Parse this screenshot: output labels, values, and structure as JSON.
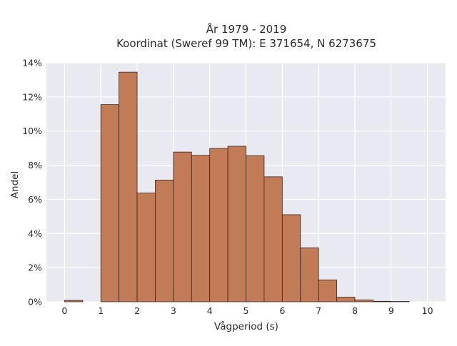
{
  "chart_data": {
    "type": "bar",
    "title_lines": [
      "År 1979 - 2019",
      "Koordinat (Sweref 99 TM): E 371654, N 6273675"
    ],
    "xlabel": "Vågperiod (s)",
    "ylabel": "Andel",
    "xlim": [
      -0.5,
      10.5
    ],
    "ylim": [
      0,
      0.14
    ],
    "x_ticks": [
      0,
      1,
      2,
      3,
      4,
      5,
      6,
      7,
      8,
      9,
      10
    ],
    "x_tick_labels": [
      "0",
      "1",
      "2",
      "3",
      "4",
      "5",
      "6",
      "7",
      "8",
      "9",
      "10"
    ],
    "y_ticks": [
      0,
      0.02,
      0.04,
      0.06,
      0.08,
      0.1,
      0.12,
      0.14
    ],
    "y_tick_labels": [
      "0%",
      "2%",
      "4%",
      "6%",
      "8%",
      "10%",
      "12%",
      "14%"
    ],
    "bin_width": 0.5,
    "bin_starts": [
      0,
      0.5,
      1.0,
      1.5,
      2.0,
      2.5,
      3.0,
      3.5,
      4.0,
      4.5,
      5.0,
      5.5,
      6.0,
      6.5,
      7.0,
      7.5,
      8.0,
      8.5,
      9.0,
      9.5
    ],
    "values": [
      0.0008,
      0,
      0.1155,
      0.1345,
      0.0637,
      0.0713,
      0.0877,
      0.0858,
      0.0898,
      0.0911,
      0.0856,
      0.0732,
      0.051,
      0.0316,
      0.0128,
      0.0027,
      0.0011,
      0.0003,
      0.0002,
      0
    ],
    "grid": true,
    "colors": {
      "bar_fill": "#c17c57",
      "bar_edge": "#3b2418",
      "plot_background": "#e9e9f1",
      "grid": "#ffffff"
    }
  }
}
